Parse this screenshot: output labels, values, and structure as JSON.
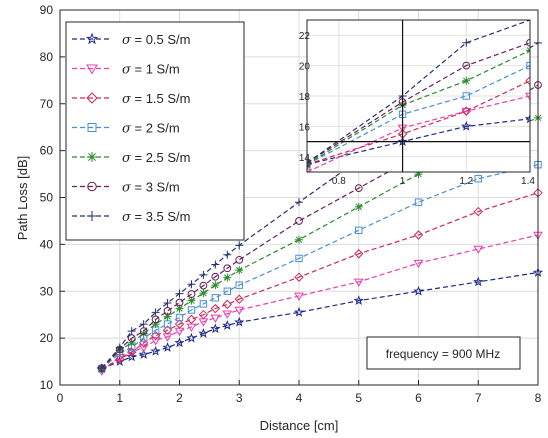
{
  "chart_data": {
    "type": "line",
    "xlabel": "Distance [cm]",
    "ylabel": "Path Loss [dB]",
    "xlim": [
      0,
      8
    ],
    "ylim": [
      10,
      90
    ],
    "xticks": [
      0,
      1,
      2,
      3,
      4,
      5,
      6,
      7,
      8
    ],
    "yticks": [
      10,
      20,
      30,
      40,
      50,
      60,
      70,
      80,
      90
    ],
    "grid": true,
    "legend_position": "top-left",
    "annotation": "frequency = 900 MHz",
    "x": [
      0.7,
      1,
      1.2,
      1.4,
      1.6,
      1.8,
      2,
      2.2,
      2.4,
      2.6,
      2.8,
      3,
      4,
      5,
      6,
      7,
      8
    ],
    "series": [
      {
        "name": "σ = 0.5 S/m",
        "sigma": "0.5",
        "color": "#1f2a8a",
        "marker": "star",
        "values": [
          13.5,
          15,
          16,
          16.5,
          17.2,
          18,
          19,
          20,
          21,
          22,
          22.7,
          23.4,
          25.5,
          28,
          30,
          32,
          34
        ]
      },
      {
        "name": "σ = 1 S/m",
        "sigma": "1",
        "color": "#e83fb0",
        "marker": "triangle-down",
        "values": [
          13,
          15.9,
          17,
          18,
          19.5,
          20.3,
          21.5,
          22.4,
          23.5,
          24.3,
          25.2,
          26,
          29,
          32,
          36,
          39,
          42
        ]
      },
      {
        "name": "σ = 1.5 S/m",
        "sigma": "1.5",
        "color": "#cc2a55",
        "marker": "diamond",
        "values": [
          13.5,
          15.5,
          17,
          19,
          20.5,
          21.7,
          23,
          24,
          25,
          26.3,
          27.2,
          28.3,
          33,
          38,
          42,
          47,
          51
        ]
      },
      {
        "name": "σ = 2 S/m",
        "sigma": "2",
        "color": "#4a8fd4",
        "marker": "square",
        "values": [
          13.5,
          16.8,
          18,
          20,
          21.7,
          23,
          24.4,
          26,
          27.3,
          28.6,
          30,
          31.3,
          37,
          43,
          49,
          54,
          57
        ]
      },
      {
        "name": "σ = 2.5 S/m",
        "sigma": "2.5",
        "color": "#2d8a2d",
        "marker": "asterisk",
        "values": [
          13.5,
          17.4,
          19,
          21,
          23,
          24.6,
          26.3,
          28,
          29.6,
          31.3,
          32.9,
          34.5,
          41,
          48,
          55,
          62,
          67
        ]
      },
      {
        "name": "σ = 3 S/m",
        "sigma": "3",
        "color": "#6a1f5a",
        "marker": "circle",
        "values": [
          13.6,
          17.6,
          20,
          21.5,
          24,
          25.8,
          27.6,
          29.4,
          31.2,
          33.1,
          34.9,
          36.7,
          45,
          52,
          59,
          66,
          74
        ]
      },
      {
        "name": "σ = 3.5 S/m",
        "sigma": "3.5",
        "color": "#26326e",
        "marker": "plus",
        "values": [
          13.6,
          18,
          21.5,
          23,
          25.5,
          27.5,
          29.5,
          31.5,
          33.5,
          35.7,
          37.8,
          39.8,
          49,
          58,
          67,
          75,
          83
        ]
      }
    ],
    "inset": {
      "xlim": [
        0.7,
        1.4
      ],
      "ylim": [
        13,
        23
      ],
      "xticks": [
        0.8,
        1,
        1.2,
        1.4
      ],
      "yticks": [
        14,
        16,
        18,
        20,
        22
      ],
      "crosshair_x": 1,
      "crosshair_y": 15
    }
  }
}
